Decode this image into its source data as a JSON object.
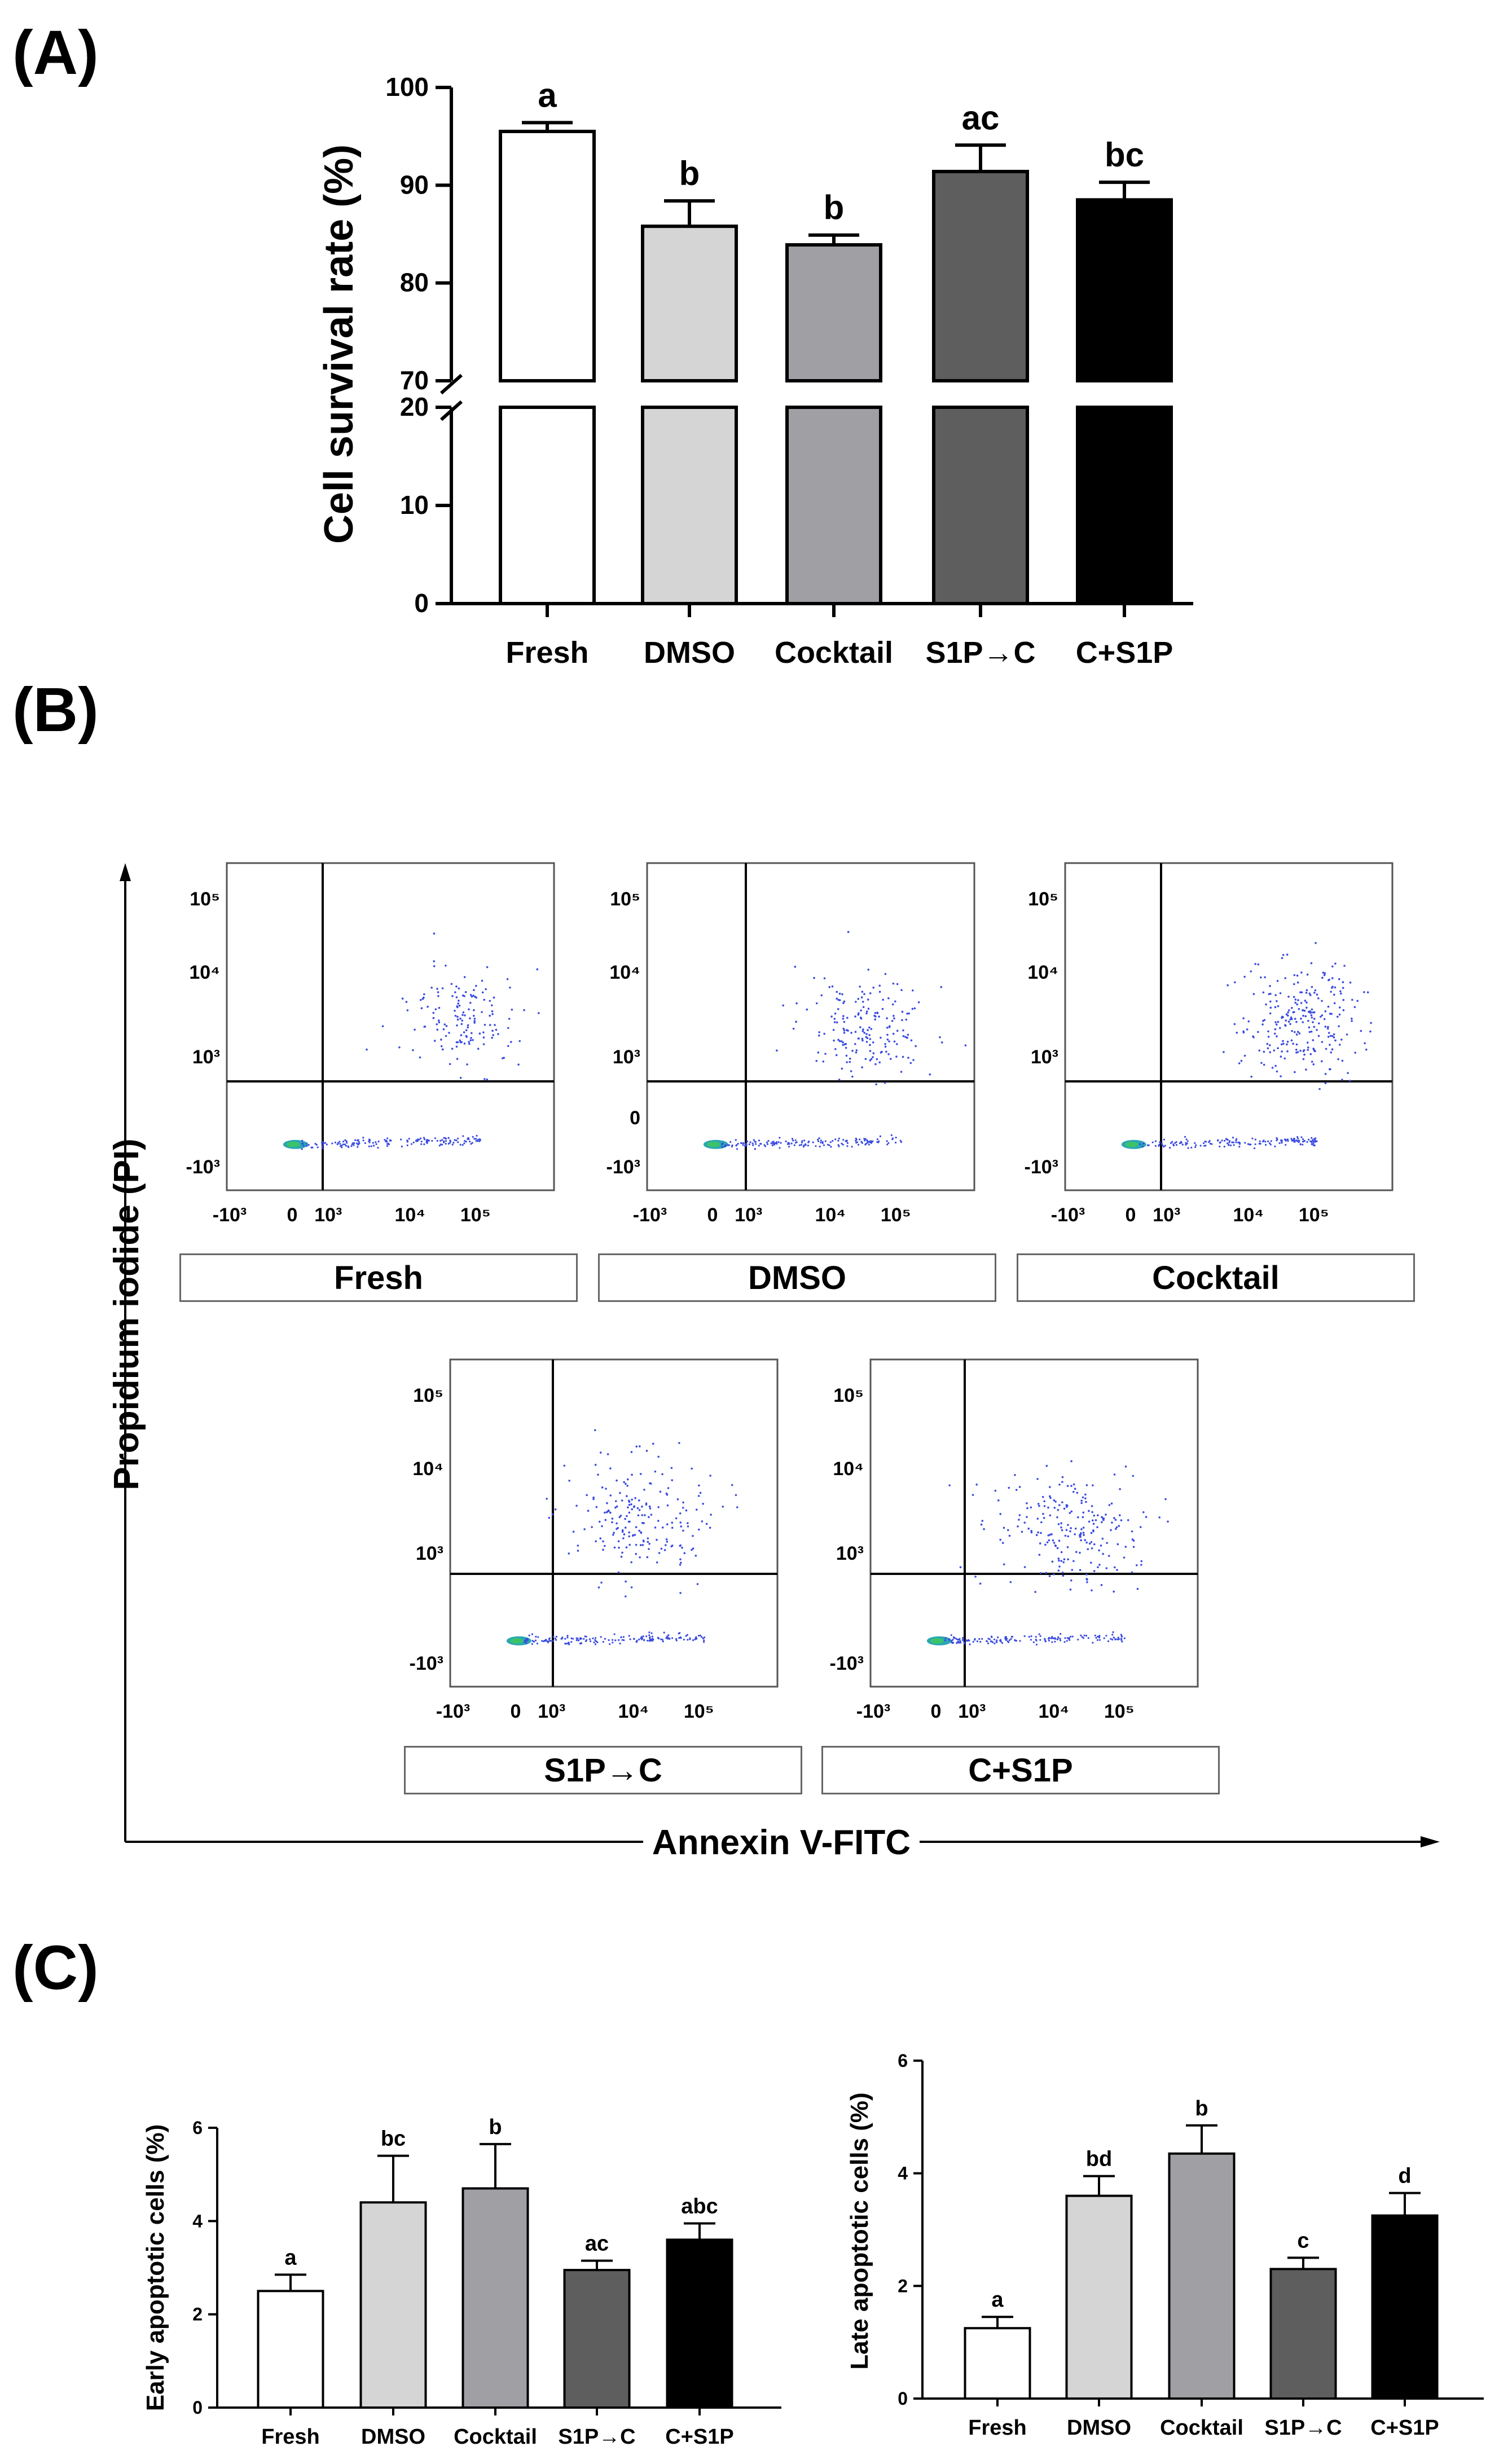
{
  "panels": {
    "A": "(A)",
    "B": "(B)",
    "C": "(C)"
  },
  "colors": {
    "fresh": "#ffffff",
    "dmso": "#d5d5d5",
    "cocktail": "#a0a0a4",
    "s1pc": "#5e5e5e",
    "cs1p": "#000000",
    "dots": "#3a4be0"
  },
  "chart_data": [
    {
      "id": "A",
      "type": "bar",
      "ylabel": "Cell survival rate (%)",
      "categories": [
        "Fresh",
        "DMSO",
        "Cocktail",
        "S1P→C",
        "C+S1P"
      ],
      "values": [
        95.5,
        85.8,
        83.9,
        91.4,
        88.5
      ],
      "errors": [
        0.9,
        2.6,
        1.0,
        2.7,
        1.8
      ],
      "significance": [
        "a",
        "b",
        "b",
        "ac",
        "bc"
      ],
      "axis_break": true,
      "yticks_lower": [
        "0",
        "10",
        "20"
      ],
      "yticks_upper": [
        "70",
        "80",
        "90",
        "100"
      ],
      "ylim_lower": [
        0,
        20
      ],
      "ylim_upper": [
        70,
        100
      ]
    },
    {
      "id": "C-early",
      "type": "bar",
      "ylabel": "Early apoptotic cells (%)",
      "categories": [
        "Fresh",
        "DMSO",
        "Cocktail",
        "S1P→C",
        "C+S1P"
      ],
      "values": [
        2.5,
        4.4,
        4.7,
        2.95,
        3.6
      ],
      "errors": [
        0.35,
        1.0,
        0.95,
        0.2,
        0.35
      ],
      "significance": [
        "a",
        "bc",
        "b",
        "ac",
        "abc"
      ],
      "yticks": [
        "0",
        "2",
        "4",
        "6"
      ],
      "ylim": [
        0,
        6
      ]
    },
    {
      "id": "C-late",
      "type": "bar",
      "ylabel": "Late apoptotic cells (%)",
      "categories": [
        "Fresh",
        "DMSO",
        "Cocktail",
        "S1P→C",
        "C+S1P"
      ],
      "values": [
        1.25,
        3.6,
        4.35,
        2.3,
        3.25
      ],
      "errors": [
        0.2,
        0.35,
        0.5,
        0.2,
        0.4
      ],
      "significance": [
        "a",
        "bd",
        "b",
        "c",
        "d"
      ],
      "yticks": [
        "0",
        "2",
        "4",
        "6"
      ],
      "ylim": [
        0,
        6
      ]
    }
  ],
  "flow": {
    "ylabel": "Propidium iodide (PI)",
    "xlabel": "Annexin V-FITC",
    "plots": [
      {
        "label": "Fresh",
        "yticks": [
          "10⁵",
          "10⁴",
          "10³",
          "-10³"
        ],
        "xticks": [
          "-10³",
          "0",
          "10³",
          "10⁴",
          "10⁵"
        ]
      },
      {
        "label": "DMSO",
        "yticks": [
          "10⁵",
          "10⁴",
          "10³",
          "0",
          "-10³"
        ],
        "xticks": [
          "-10³",
          "0",
          "10³",
          "10⁴",
          "10⁵"
        ]
      },
      {
        "label": "Cocktail",
        "yticks": [
          "10⁵",
          "10⁴",
          "10³",
          "-10³"
        ],
        "xticks": [
          "-10³",
          "0",
          "10³",
          "10⁴",
          "10⁵"
        ]
      },
      {
        "label": "S1P→C",
        "yticks": [
          "10⁵",
          "10⁴",
          "10³",
          "-10³"
        ],
        "xticks": [
          "-10³",
          "0",
          "10³",
          "10⁴",
          "10⁵"
        ]
      },
      {
        "label": "C+S1P",
        "yticks": [
          "10⁵",
          "10⁴",
          "10³",
          "-10³"
        ],
        "xticks": [
          "-10³",
          "0",
          "10³",
          "10⁴",
          "10⁵"
        ]
      }
    ]
  }
}
